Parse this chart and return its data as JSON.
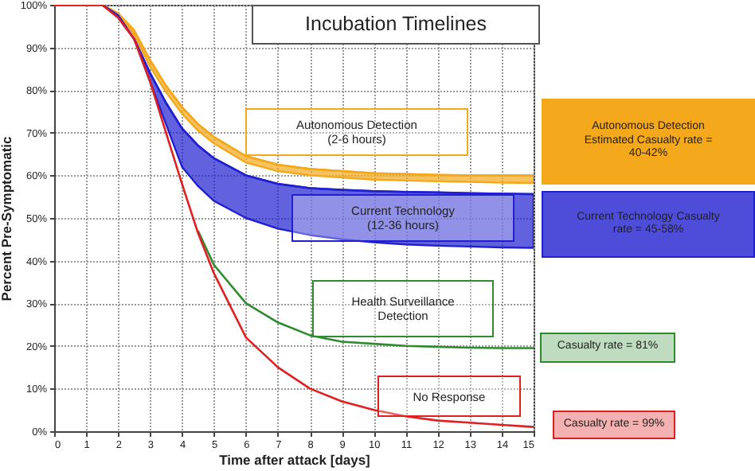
{
  "chart_data": {
    "type": "line",
    "title": "Incubation Timelines",
    "xlabel": "Time after attack [days]",
    "ylabel": "Percent Pre-Symptomatic",
    "x": [
      0,
      1,
      1.5,
      2,
      2.5,
      3,
      3.5,
      4,
      4.5,
      5,
      6,
      7,
      8,
      9,
      10,
      11,
      12,
      13,
      14,
      15
    ],
    "series": [
      {
        "name": "Autonomous Detection\n(2-6 hours)",
        "color": "#f4a81c",
        "values": [
          100,
          100,
          100,
          98,
          94,
          87,
          81,
          76,
          72,
          69,
          64.5,
          62.5,
          61.5,
          61,
          60.5,
          60.3,
          60.1,
          60,
          60,
          60
        ],
        "lower": [
          100,
          100,
          100,
          98,
          93,
          85.5,
          79.5,
          74.5,
          70.5,
          67.5,
          63,
          61,
          60,
          59.5,
          59,
          58.8,
          58.6,
          58.5,
          58.3,
          58.2
        ],
        "upper": [
          100,
          100,
          100,
          98,
          94,
          87,
          81,
          76,
          72,
          69,
          64.5,
          62.5,
          61.5,
          61,
          60.5,
          60.3,
          60.1,
          60,
          60,
          60
        ]
      },
      {
        "name": "Current Technology\n(12-36 hours)",
        "color": "#2020d0",
        "values": [
          100,
          100,
          100,
          97.5,
          92,
          84,
          77,
          71,
          67,
          64,
          60,
          58,
          57,
          56.6,
          56.3,
          56.1,
          56,
          55.8,
          55.7,
          55.6
        ],
        "lower": [
          100,
          100,
          100,
          97,
          92,
          82,
          72,
          62,
          57.5,
          54,
          50,
          47.5,
          46,
          45,
          44.3,
          43.8,
          43.5,
          43.3,
          43.1,
          43
        ],
        "upper": [
          100,
          100,
          100,
          97.5,
          92,
          84,
          77,
          71,
          67,
          64,
          60,
          58,
          57,
          56.6,
          56.3,
          56.1,
          56,
          55.8,
          55.7,
          55.6
        ]
      },
      {
        "name": "Health Surveillance\nDetection",
        "color": "#2e8b2e",
        "values": [
          null,
          null,
          null,
          null,
          null,
          null,
          null,
          null,
          47,
          39,
          30,
          25.5,
          22.5,
          21,
          20.5,
          20,
          19.8,
          19.6,
          19.5,
          19.5
        ]
      },
      {
        "name": "No Response",
        "color": "#e02020",
        "values": [
          100,
          100,
          100,
          97,
          92,
          82,
          70,
          58,
          46.5,
          37,
          22,
          15,
          10,
          7,
          5,
          3.5,
          2.5,
          2,
          1.5,
          1
        ]
      }
    ],
    "xlim": [
      0,
      15
    ],
    "xticks": [
      0,
      1,
      2,
      3,
      4,
      5,
      6,
      7,
      8,
      9,
      10,
      11,
      12,
      13,
      14,
      15
    ],
    "ylim": [
      0,
      100
    ],
    "yticks": [
      {
        "value": 0,
        "label": "0%"
      },
      {
        "value": 10,
        "label": "10%"
      },
      {
        "value": 20,
        "label": "20%"
      },
      {
        "value": 30,
        "label": "30%"
      },
      {
        "value": 40,
        "label": "40%"
      },
      {
        "value": 50,
        "label": "50%"
      },
      {
        "value": 60,
        "label": "60%"
      },
      {
        "value": 70,
        "label": "70%"
      },
      {
        "value": 80,
        "label": "80%"
      },
      {
        "value": 90,
        "label": "90%"
      },
      {
        "value": 100,
        "label": "100%"
      }
    ],
    "grid": true,
    "annotations": [
      "Autonomous Detection\nEstimated Casualty rate =\n40-42%",
      "Current Technology Casualty\nrate = 45-58%",
      "Casualty rate = 81%",
      "Casualty rate = 99%"
    ]
  }
}
